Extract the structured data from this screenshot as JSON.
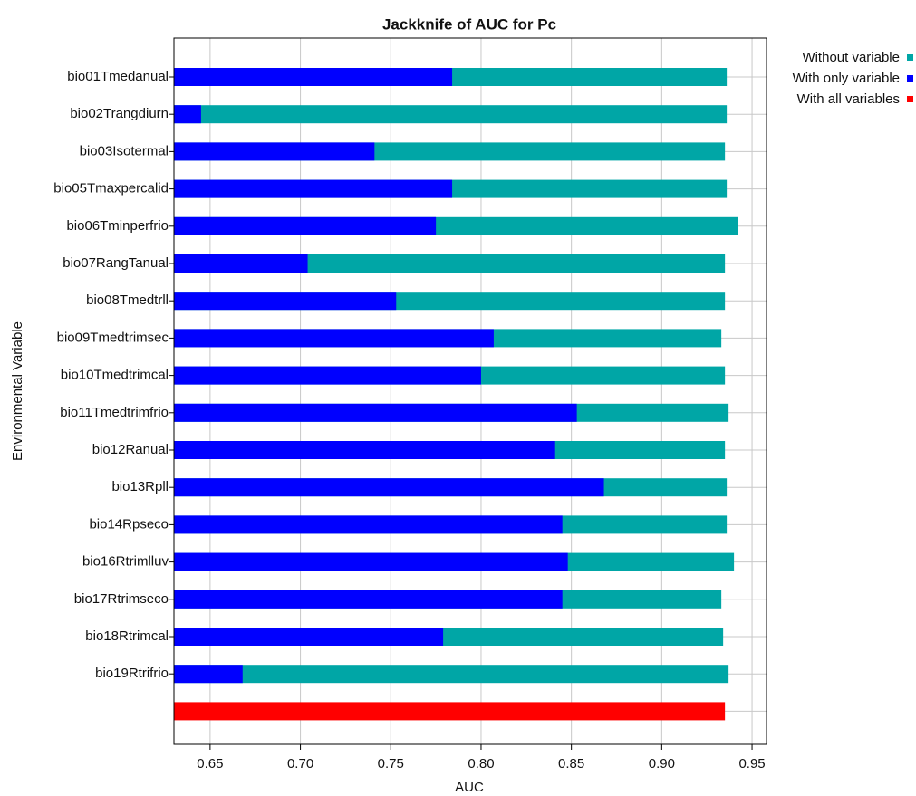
{
  "chart_data": {
    "type": "bar",
    "orientation": "horizontal",
    "title": "Jackknife of AUC for Pc",
    "x_label": "AUC",
    "y_label": "Environmental Variable",
    "categories": [
      "bio01Tmedanual",
      "bio02Trangdiurn",
      "bio03Isotermal",
      "bio05Tmaxpercalid",
      "bio06Tminperfrio",
      "bio07RangTanual",
      "bio08Tmedtrll",
      "bio09Tmedtrimsec",
      "bio10Tmedtrimcal",
      "bio11Tmedtrimfrio",
      "bio12Ranual",
      "bio13Rpll",
      "bio14Rpseco",
      "bio16Rtrimlluv",
      "bio17Rtrimseco",
      "bio18Rtrimcal",
      "bio19Rtrifrio",
      null
    ],
    "series": [
      {
        "name": "Without variable",
        "color": "#00a6a6",
        "values": [
          0.936,
          0.936,
          0.935,
          0.936,
          0.942,
          0.935,
          0.935,
          0.933,
          0.935,
          0.937,
          0.935,
          0.936,
          0.936,
          0.94,
          0.933,
          0.934,
          0.937,
          null
        ]
      },
      {
        "name": "With only variable",
        "color": "#0000ff",
        "values": [
          0.784,
          0.645,
          0.741,
          0.784,
          0.775,
          0.704,
          0.753,
          0.807,
          0.8,
          0.853,
          0.841,
          0.868,
          0.845,
          0.848,
          0.845,
          0.779,
          0.668,
          null
        ]
      },
      {
        "name": "With all variables",
        "color": "#ff0000",
        "values": [
          null,
          null,
          null,
          null,
          null,
          null,
          null,
          null,
          null,
          null,
          null,
          null,
          null,
          null,
          null,
          null,
          null,
          0.935
        ]
      }
    ],
    "xlim": [
      0.63,
      0.958
    ],
    "xticks": [
      0.65,
      {
        "value": 0.7,
        "label": "0.70"
      },
      0.75,
      {
        "value": 0.8,
        "label": "0.80"
      },
      0.85,
      {
        "value": 0.9,
        "label": "0.90"
      },
      0.95
    ],
    "grid": true,
    "legend": "top-right"
  }
}
